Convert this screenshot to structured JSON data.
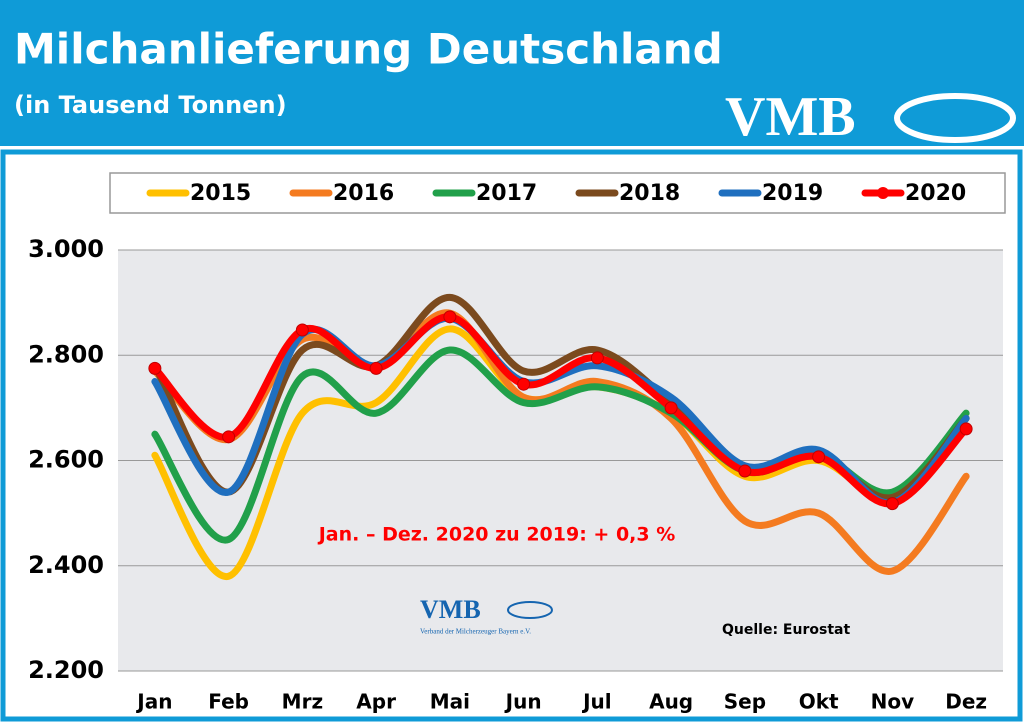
{
  "chart_data": {
    "type": "line",
    "title": "Milchanlieferung Deutschland",
    "subtitle": "(in Tausend Tonnen)",
    "annotations": [
      "Jan. – Dez. 2020 zu 2019: + 0,3 %",
      "Quelle: Eurostat"
    ],
    "categories": [
      "Jan",
      "Feb",
      "Mrz",
      "Apr",
      "Mai",
      "Jun",
      "Jul",
      "Aug",
      "Sep",
      "Okt",
      "Nov",
      "Dez"
    ],
    "series": [
      {
        "name": "2015",
        "color": "#ffc000",
        "values": [
          2610,
          2380,
          2690,
          2710,
          2850,
          2720,
          2740,
          2690,
          2570,
          2600,
          2530,
          2680
        ]
      },
      {
        "name": "2016",
        "color": "#f47b20",
        "values": [
          2770,
          2640,
          2830,
          2780,
          2880,
          2720,
          2750,
          2680,
          2485,
          2500,
          2390,
          2570
        ]
      },
      {
        "name": "2017",
        "color": "#21a04a",
        "values": [
          2650,
          2450,
          2760,
          2690,
          2810,
          2710,
          2740,
          2690,
          2580,
          2610,
          2540,
          2690
        ]
      },
      {
        "name": "2018",
        "color": "#7b4a1e",
        "values": [
          2780,
          2540,
          2810,
          2780,
          2910,
          2770,
          2810,
          2710,
          2580,
          2610,
          2530,
          2680
        ]
      },
      {
        "name": "2019",
        "color": "#1f6fbf",
        "values": [
          2750,
          2540,
          2840,
          2780,
          2870,
          2750,
          2780,
          2720,
          2590,
          2620,
          2520,
          2680
        ]
      },
      {
        "name": "2020",
        "color": "#ff0000",
        "marker": true,
        "values": [
          2775,
          2645,
          2848,
          2775,
          2873,
          2745,
          2795,
          2700,
          2580,
          2607,
          2518,
          2660
        ]
      }
    ],
    "ylim": [
      2200,
      3000
    ],
    "yticks": [
      {
        "value": 2200,
        "label": "2.200"
      },
      {
        "value": 2400,
        "label": "2.400"
      },
      {
        "value": 2600,
        "label": "2.600"
      },
      {
        "value": 2800,
        "label": "2.800"
      },
      {
        "value": 3000,
        "label": "3.000"
      }
    ],
    "grid": true
  },
  "logo": {
    "text": "VMB",
    "subtext": "Verband der Milcherzeuger Bayern e.V."
  }
}
